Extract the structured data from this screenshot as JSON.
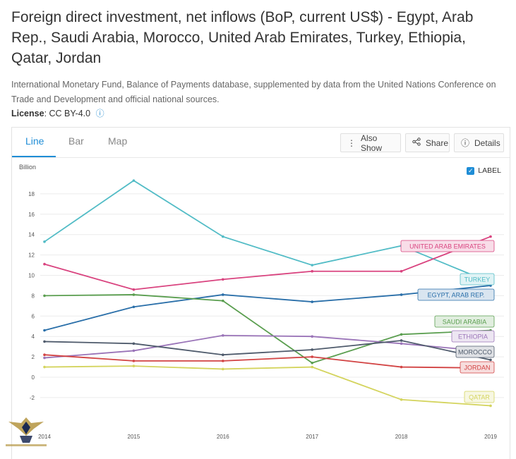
{
  "header": {
    "title": "Foreign direct investment, net inflows (BoP, current US$) - Egypt, Arab Rep., Saudi Arabia, Morocco, United Arab Emirates, Turkey, Ethiopia, Qatar, Jordan",
    "source": "International Monetary Fund, Balance of Payments database, supplemented by data from the United Nations Conference on Trade and Development and official national sources.",
    "license_label": "License",
    "license_value": ": CC BY-4.0"
  },
  "tabs": [
    {
      "label": "Line"
    },
    {
      "label": "Bar"
    },
    {
      "label": "Map"
    }
  ],
  "toolbar": {
    "also_show": "Also Show",
    "share": "Share",
    "details": "Details"
  },
  "label_toggle": "LABEL",
  "colors": {
    "accent": "#1f8dd6",
    "turkey": "#52bcc6",
    "uae": "#d9437f",
    "saudi": "#5a9e4f",
    "egypt": "#2a6fa9",
    "ethiopia": "#9a74b8",
    "morocco": "#4f5b6c",
    "jordan": "#d24343",
    "qatar": "#d4d45e"
  },
  "chart_data": {
    "type": "line",
    "title": "",
    "xlabel": "",
    "ylabel": "Billion",
    "x": [
      2014,
      2015,
      2016,
      2017,
      2018,
      2019
    ],
    "x_tick_labels": [
      "2014",
      "2015",
      "2016",
      "2017",
      "2018",
      "2019"
    ],
    "y_tick_labels": [
      "-2",
      "0",
      "2",
      "4",
      "6",
      "8",
      "10",
      "12",
      "14",
      "16",
      "18"
    ],
    "ylim": [
      -3.2,
      19.5
    ],
    "grid": true,
    "series": [
      {
        "name": "TURKEY",
        "color": "#52bcc6",
        "values": [
          13.3,
          19.3,
          13.8,
          11.0,
          12.9,
          9.3
        ]
      },
      {
        "name": "UNITED ARAB EMIRATES",
        "color": "#d9437f",
        "values": [
          11.1,
          8.6,
          9.6,
          10.4,
          10.4,
          13.8
        ]
      },
      {
        "name": "EGYPT, ARAB REP.",
        "color": "#2a6fa9",
        "values": [
          4.6,
          6.9,
          8.1,
          7.4,
          8.1,
          9.0
        ]
      },
      {
        "name": "SAUDI ARABIA",
        "color": "#5a9e4f",
        "values": [
          8.0,
          8.1,
          7.5,
          1.4,
          4.2,
          4.6
        ]
      },
      {
        "name": "ETHIOPIA",
        "color": "#9a74b8",
        "values": [
          1.9,
          2.6,
          4.1,
          4.0,
          3.3,
          2.5
        ]
      },
      {
        "name": "MOROCCO",
        "color": "#4f5b6c",
        "values": [
          3.5,
          3.3,
          2.2,
          2.7,
          3.6,
          1.7
        ]
      },
      {
        "name": "JORDAN",
        "color": "#d24343",
        "values": [
          2.2,
          1.6,
          1.6,
          2.0,
          1.0,
          0.9
        ]
      },
      {
        "name": "QATAR",
        "color": "#d4d45e",
        "values": [
          1.0,
          1.1,
          0.8,
          1.0,
          -2.2,
          -2.8
        ]
      }
    ]
  }
}
